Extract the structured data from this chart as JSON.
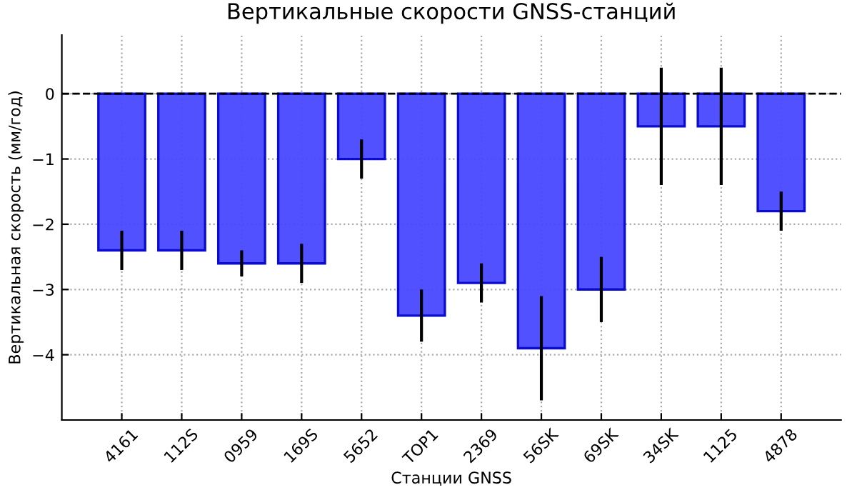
{
  "chart_data": {
    "type": "bar",
    "title": "Вертикальные скорости GNSS-станций",
    "xlabel": "Станции GNSS",
    "ylabel": "Вертикальная скорость (мм/год)",
    "categories": [
      "4161",
      "112S",
      "0959",
      "169S",
      "5652",
      "TOP1",
      "2369",
      "56SK",
      "69SK",
      "34SK",
      "1125",
      "4878"
    ],
    "values": [
      -2.4,
      -2.4,
      -2.6,
      -2.6,
      -1.0,
      -3.4,
      -2.9,
      -3.9,
      -3.0,
      -0.5,
      -0.5,
      -1.8
    ],
    "errors": [
      0.3,
      0.3,
      0.2,
      0.3,
      0.3,
      0.4,
      0.3,
      0.8,
      0.5,
      0.9,
      0.9,
      0.3
    ],
    "color": "#4848ff",
    "ylim": [
      -5,
      0.9
    ],
    "yticks": [
      {
        "value": -4,
        "label": "−4"
      },
      {
        "value": -3,
        "label": "−3"
      },
      {
        "value": -2,
        "label": "−2"
      },
      {
        "value": -1,
        "label": "−1"
      },
      0
    ],
    "ref_lines": [
      {
        "axis": "y",
        "value": 0,
        "color": "#000000",
        "line_style": "dashed"
      }
    ],
    "grid": true
  }
}
